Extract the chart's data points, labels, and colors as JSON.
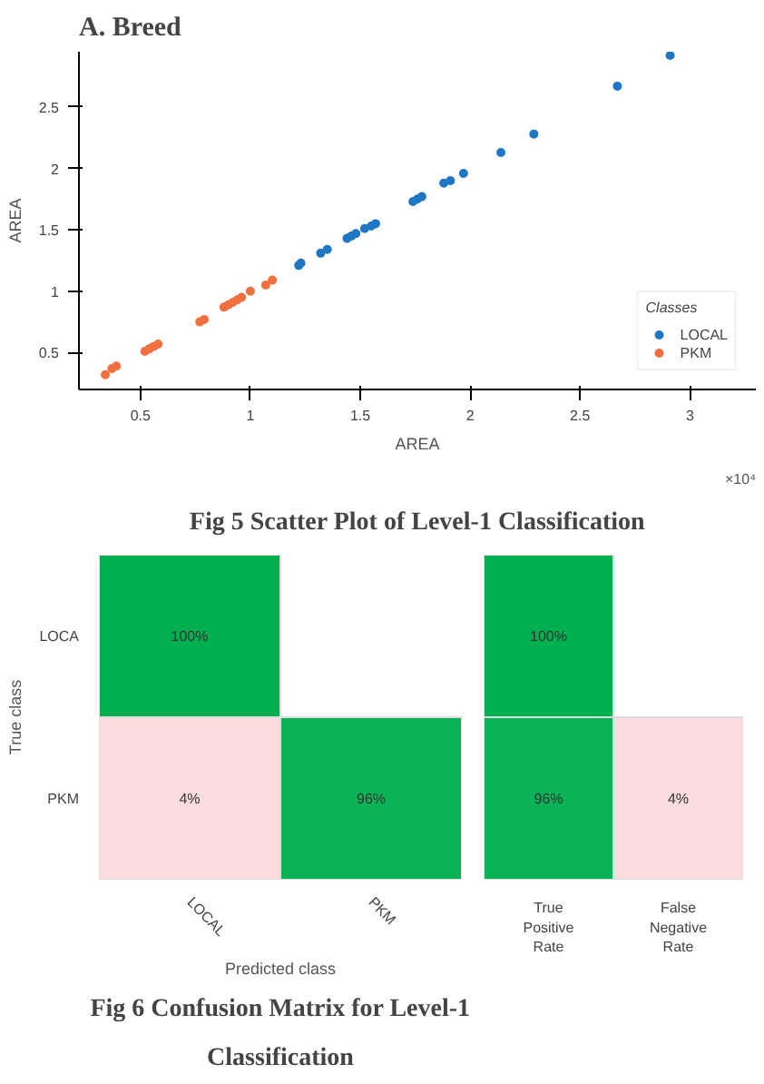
{
  "chart_data": [
    {
      "type": "scatter",
      "title": "Fig 5 Scatter Plot of Level-1 Classification",
      "xlabel": "AREA",
      "ylabel": "AREA",
      "legend_title": "Classes",
      "legend": "bottom right",
      "marker": "circle",
      "grid": false,
      "annotations": [
        "A. Breed",
        "×10⁴"
      ],
      "xlim": [
        0.22,
        3.3
      ],
      "ylim": [
        0.2,
        2.95
      ],
      "xticks": [
        0.5,
        1,
        1.5,
        2,
        2.5,
        3
      ],
      "yticks": [
        0.5,
        1,
        1.5,
        2,
        2.5
      ],
      "series": [
        {
          "name": "LOCAL",
          "color": "#1f77c4",
          "x": [
            1.22,
            1.23,
            1.32,
            1.35,
            1.44,
            1.46,
            1.48,
            1.52,
            1.55,
            1.57,
            1.74,
            1.76,
            1.78,
            1.88,
            1.91,
            1.97,
            2.14,
            2.29,
            2.67,
            2.91
          ],
          "values": [
            1.21,
            1.23,
            1.31,
            1.34,
            1.43,
            1.45,
            1.47,
            1.51,
            1.53,
            1.55,
            1.73,
            1.75,
            1.77,
            1.88,
            1.9,
            1.96,
            2.13,
            2.28,
            2.67,
            2.92
          ]
        },
        {
          "name": "PKM",
          "color": "#f07040",
          "x": [
            0.34,
            0.37,
            0.39,
            0.52,
            0.54,
            0.56,
            0.58,
            0.77,
            0.79,
            0.88,
            0.9,
            0.92,
            0.94,
            0.96,
            1.0,
            1.07,
            1.1
          ],
          "values": [
            0.32,
            0.37,
            0.39,
            0.51,
            0.53,
            0.55,
            0.57,
            0.75,
            0.77,
            0.87,
            0.89,
            0.91,
            0.93,
            0.95,
            1.0,
            1.05,
            1.09
          ]
        }
      ]
    },
    {
      "type": "heatmap",
      "title": "Fig 6 Confusion Matrix for Level-1 Classification",
      "xlabel": "Predicted class",
      "ylabel": "True class",
      "categories": [
        "LOCAL",
        "PKM"
      ],
      "y_categories": [
        "LOCA",
        "PKM"
      ],
      "cells": [
        [
          100,
          null
        ],
        [
          4,
          96
        ]
      ],
      "cell_labels": [
        [
          "100%",
          null
        ],
        [
          "4%",
          "96%"
        ]
      ]
    },
    {
      "type": "heatmap",
      "categories": [
        "True Positive Rate",
        "False Negative Rate"
      ],
      "y_categories": [
        null,
        null
      ],
      "cells": [
        [
          100,
          null
        ],
        [
          96,
          4
        ]
      ],
      "cell_labels": [
        [
          "100%",
          null
        ],
        [
          "96%",
          "4%"
        ]
      ]
    }
  ]
}
